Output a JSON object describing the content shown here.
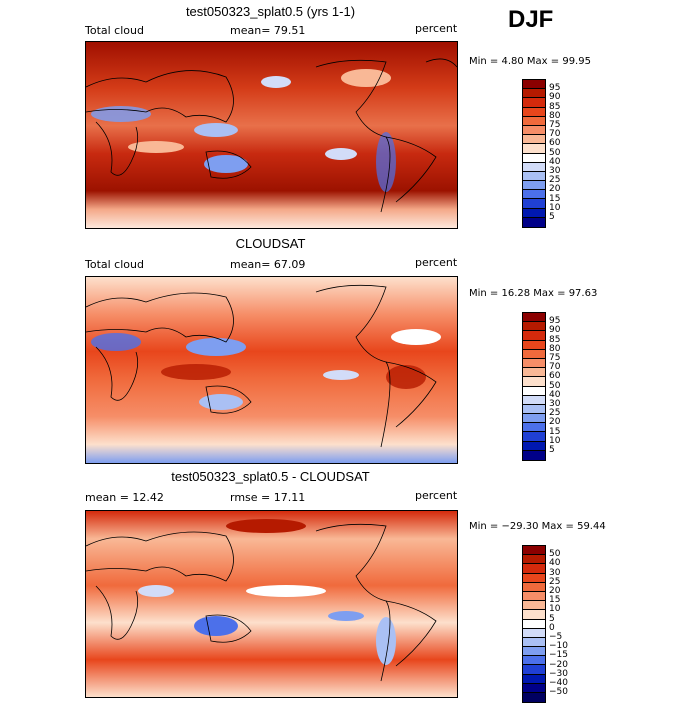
{
  "season": "DJF",
  "panels": [
    {
      "title": "test050323_splat0.5 (yrs 1-1)",
      "left_label": "Total cloud",
      "center_label": "mean=  79.51",
      "right_label": "percent",
      "minmax": "Min =   4.80 Max =  99.95",
      "colorbar": {
        "labels": [
          "95",
          "90",
          "85",
          "80",
          "75",
          "70",
          "60",
          "50",
          "40",
          "30",
          "25",
          "20",
          "15",
          "10",
          "5"
        ],
        "colors": [
          "#8b0000",
          "#b51a00",
          "#d42a0c",
          "#e8461c",
          "#f06a3c",
          "#f68e68",
          "#f9b896",
          "#fde0cc",
          "#ffffff",
          "#d2dcf8",
          "#aac0f4",
          "#7e9ef0",
          "#4c70ea",
          "#2040d4",
          "#0018b0",
          "#000088"
        ]
      }
    },
    {
      "title": "CLOUDSAT",
      "left_label": "Total cloud",
      "center_label": "mean=  67.09",
      "right_label": "percent",
      "minmax": "Min =  16.28 Max =  97.63",
      "colorbar": {
        "labels": [
          "95",
          "90",
          "85",
          "80",
          "75",
          "70",
          "60",
          "50",
          "40",
          "30",
          "25",
          "20",
          "15",
          "10",
          "5"
        ],
        "colors": [
          "#8b0000",
          "#b51a00",
          "#d42a0c",
          "#e8461c",
          "#f06a3c",
          "#f68e68",
          "#f9b896",
          "#fde0cc",
          "#ffffff",
          "#d2dcf8",
          "#aac0f4",
          "#7e9ef0",
          "#4c70ea",
          "#2040d4",
          "#0018b0",
          "#000088"
        ]
      }
    },
    {
      "title": "test050323_splat0.5 - CLOUDSAT",
      "left_label": "mean =  12.42",
      "center_label": "rmse =  17.11",
      "right_label": "percent",
      "minmax": "Min = −29.30 Max =  59.44",
      "colorbar": {
        "labels": [
          "50",
          "40",
          "30",
          "25",
          "20",
          "15",
          "10",
          "5",
          "0",
          "−5",
          "−10",
          "−15",
          "−20",
          "−30",
          "−40",
          "−50"
        ],
        "colors": [
          "#8b0000",
          "#b51a00",
          "#d42a0c",
          "#e8461c",
          "#f06a3c",
          "#f68e68",
          "#f9b896",
          "#fde0cc",
          "#ffffff",
          "#d2dcf8",
          "#aac0f4",
          "#7e9ef0",
          "#4c70ea",
          "#2040d4",
          "#0018b0",
          "#000088",
          "#000060"
        ]
      }
    }
  ]
}
